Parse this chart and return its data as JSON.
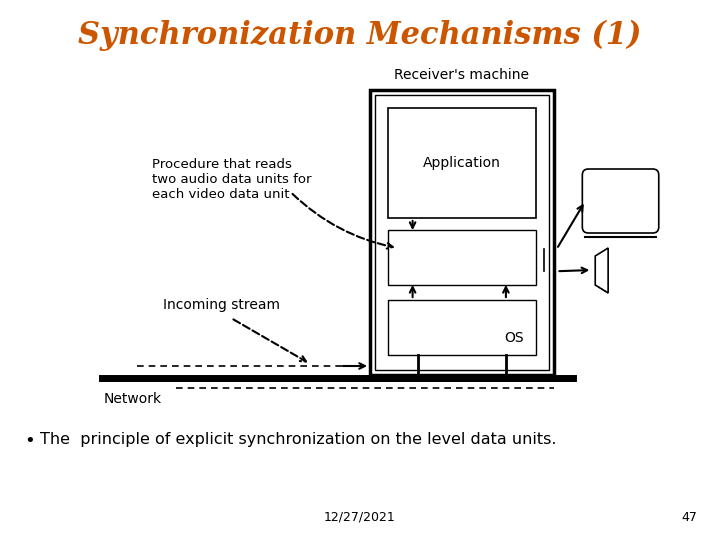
{
  "title": "Synchronization Mechanisms (1)",
  "title_color": "#CC5500",
  "title_fontsize": 22,
  "bullet_text": "The  principle of explicit synchronization on the level data units.",
  "footer_date": "12/27/2021",
  "footer_page": "47",
  "bg_color": "#ffffff",
  "diagram": {
    "receiver_label": "Receiver's machine",
    "application_label": "Application",
    "os_label": "OS",
    "network_label": "Network",
    "incoming_stream_label": "Incoming stream",
    "procedure_label": "Procedure that reads\ntwo audio data units for\neach video data unit"
  }
}
